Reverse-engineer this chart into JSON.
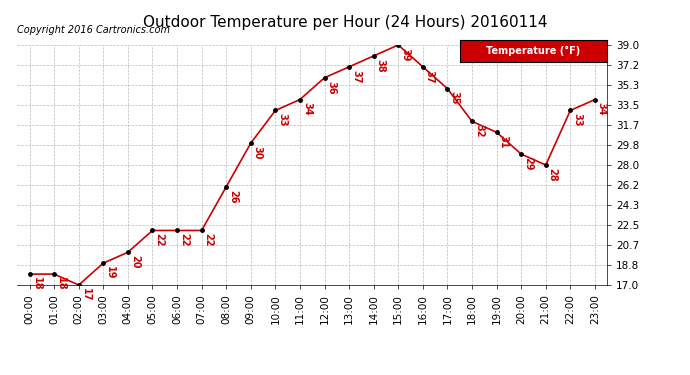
{
  "title": "Outdoor Temperature per Hour (24 Hours) 20160114",
  "copyright": "Copyright 2016 Cartronics.com",
  "legend_label": "Temperature (°F)",
  "hours": [
    "00:00",
    "01:00",
    "02:00",
    "03:00",
    "04:00",
    "05:00",
    "06:00",
    "07:00",
    "08:00",
    "09:00",
    "10:00",
    "11:00",
    "12:00",
    "13:00",
    "14:00",
    "15:00",
    "16:00",
    "17:00",
    "18:00",
    "19:00",
    "20:00",
    "21:00",
    "22:00",
    "23:00"
  ],
  "temperatures": [
    18,
    18,
    17,
    19,
    20,
    22,
    22,
    22,
    26,
    30,
    33,
    34,
    36,
    37,
    38,
    39,
    37,
    35,
    32,
    31,
    29,
    28,
    33,
    34
  ],
  "ylim_min": 17.0,
  "ylim_max": 39.0,
  "yticks": [
    17.0,
    18.8,
    20.7,
    22.5,
    24.3,
    26.2,
    28.0,
    29.8,
    31.7,
    33.5,
    35.3,
    37.2,
    39.0
  ],
  "line_color": "#cc0000",
  "marker_color": "#000000",
  "label_color": "#cc0000",
  "grid_color": "#bbbbbb",
  "background_color": "#ffffff",
  "legend_bg": "#cc0000",
  "legend_text_color": "#ffffff",
  "title_fontsize": 11,
  "tick_fontsize": 7.5,
  "label_fontsize": 7,
  "copyright_fontsize": 7
}
